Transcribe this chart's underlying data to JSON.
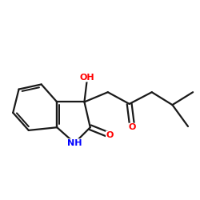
{
  "bg_color": "#ffffff",
  "bond_color": "#1a1a1a",
  "O_color": "#ff0000",
  "N_color": "#0000ff",
  "lw": 1.6,
  "fs": 8.0,
  "xlim": [
    0,
    10
  ],
  "ylim": [
    0,
    10
  ]
}
